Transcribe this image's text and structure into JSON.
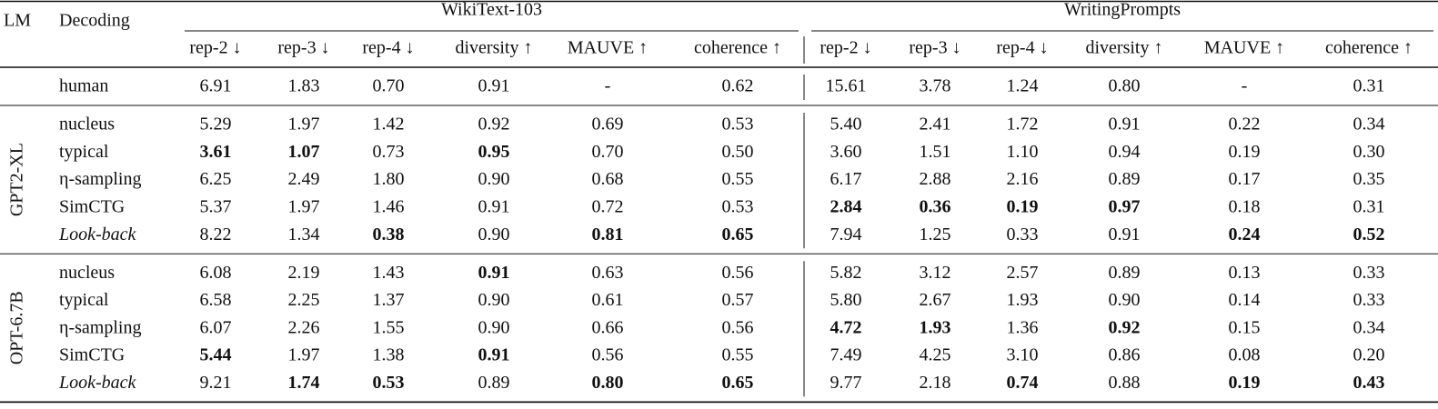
{
  "table": {
    "header": {
      "lm": "LM",
      "decoding": "Decoding"
    },
    "groups": [
      {
        "name": "WikiText-103",
        "metrics": [
          "rep-2 ↓",
          "rep-3 ↓",
          "rep-4 ↓",
          "diversity ↑",
          "MAUVE ↑",
          "coherence ↑"
        ]
      },
      {
        "name": "WritingPrompts",
        "metrics": [
          "rep-2 ↓",
          "rep-3 ↓",
          "rep-4 ↓",
          "diversity ↑",
          "MAUVE ↑",
          "coherence ↑"
        ]
      }
    ],
    "sections": [
      {
        "rows": [
          {
            "decoding": "human",
            "values": [
              "6.91",
              "1.83",
              "0.70",
              "0.91",
              "-",
              "0.62",
              "15.61",
              "3.78",
              "1.24",
              "0.80",
              "-",
              "0.31"
            ],
            "bold": []
          }
        ]
      },
      {
        "lm": "GPT2-XL",
        "rows": [
          {
            "decoding": "nucleus",
            "values": [
              "5.29",
              "1.97",
              "1.42",
              "0.92",
              "0.69",
              "0.53",
              "5.40",
              "2.41",
              "1.72",
              "0.91",
              "0.22",
              "0.34"
            ],
            "bold": []
          },
          {
            "decoding": "typical",
            "values": [
              "3.61",
              "1.07",
              "0.73",
              "0.95",
              "0.70",
              "0.50",
              "3.60",
              "1.51",
              "1.10",
              "0.94",
              "0.19",
              "0.30"
            ],
            "bold": [
              0,
              1,
              3
            ]
          },
          {
            "decoding": "η-sampling",
            "values": [
              "6.25",
              "2.49",
              "1.80",
              "0.90",
              "0.68",
              "0.55",
              "6.17",
              "2.88",
              "2.16",
              "0.89",
              "0.17",
              "0.35"
            ],
            "bold": []
          },
          {
            "decoding": "SimCTG",
            "values": [
              "5.37",
              "1.97",
              "1.46",
              "0.91",
              "0.72",
              "0.53",
              "2.84",
              "0.36",
              "0.19",
              "0.97",
              "0.18",
              "0.31"
            ],
            "bold": [
              6,
              7,
              8,
              9
            ]
          },
          {
            "decoding": "Look-back",
            "italic": true,
            "values": [
              "8.22",
              "1.34",
              "0.38",
              "0.90",
              "0.81",
              "0.65",
              "7.94",
              "1.25",
              "0.33",
              "0.91",
              "0.24",
              "0.52"
            ],
            "bold": [
              2,
              4,
              5,
              10,
              11
            ]
          }
        ]
      },
      {
        "lm": "OPT-6.7B",
        "rows": [
          {
            "decoding": "nucleus",
            "values": [
              "6.08",
              "2.19",
              "1.43",
              "0.91",
              "0.63",
              "0.56",
              "5.82",
              "3.12",
              "2.57",
              "0.89",
              "0.13",
              "0.33"
            ],
            "bold": [
              3
            ]
          },
          {
            "decoding": "typical",
            "values": [
              "6.58",
              "2.25",
              "1.37",
              "0.90",
              "0.61",
              "0.57",
              "5.80",
              "2.67",
              "1.93",
              "0.90",
              "0.14",
              "0.33"
            ],
            "bold": []
          },
          {
            "decoding": "η-sampling",
            "values": [
              "6.07",
              "2.26",
              "1.55",
              "0.90",
              "0.66",
              "0.56",
              "4.72",
              "1.93",
              "1.36",
              "0.92",
              "0.15",
              "0.34"
            ],
            "bold": [
              6,
              7,
              9
            ]
          },
          {
            "decoding": "SimCTG",
            "values": [
              "5.44",
              "1.97",
              "1.38",
              "0.91",
              "0.56",
              "0.55",
              "7.49",
              "4.25",
              "3.10",
              "0.86",
              "0.08",
              "0.20"
            ],
            "bold": [
              0,
              3
            ]
          },
          {
            "decoding": "Look-back",
            "italic": true,
            "values": [
              "9.21",
              "1.74",
              "0.53",
              "0.89",
              "0.80",
              "0.65",
              "9.77",
              "2.18",
              "0.74",
              "0.88",
              "0.19",
              "0.43"
            ],
            "bold": [
              1,
              2,
              4,
              5,
              8,
              10,
              11
            ]
          }
        ]
      }
    ]
  }
}
